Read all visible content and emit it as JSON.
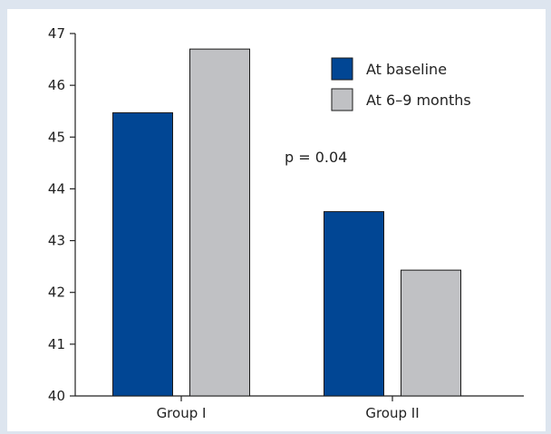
{
  "chart_data": {
    "type": "bar",
    "categories": [
      "Group I",
      "Group II"
    ],
    "series": [
      {
        "name": "At baseline",
        "values": [
          45.47,
          43.56
        ],
        "color": "#014694"
      },
      {
        "name": "At 6–9 months",
        "values": [
          46.7,
          42.43
        ],
        "color": "#c0c1c4"
      }
    ],
    "ylim": [
      40,
      47
    ],
    "yticks": [
      "40",
      "41",
      "42",
      "43",
      "44",
      "45",
      "46",
      "47"
    ],
    "xlabel": "",
    "ylabel": "",
    "title": "",
    "legend_position": "top-right",
    "annotation": "p = 0.04",
    "grid": false,
    "background_color": "#dde5ef"
  }
}
